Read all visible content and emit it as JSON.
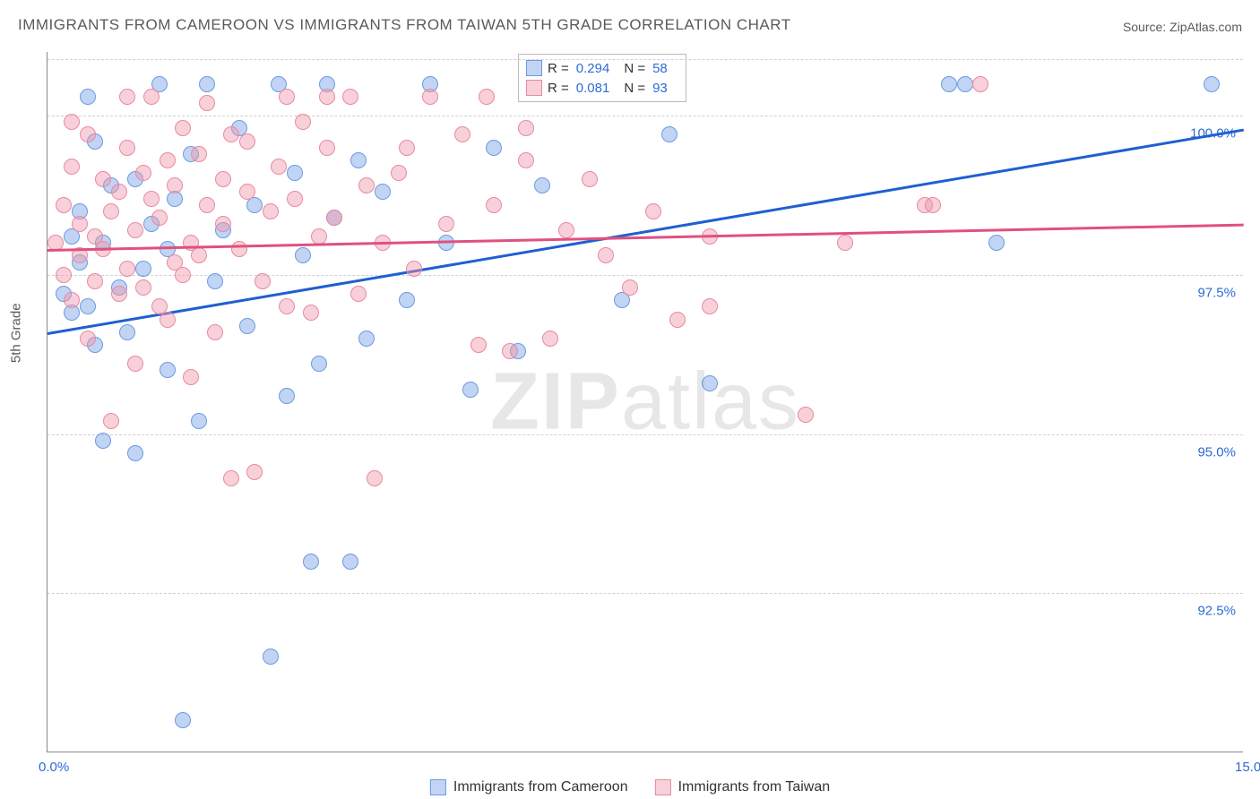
{
  "title": "IMMIGRANTS FROM CAMEROON VS IMMIGRANTS FROM TAIWAN 5TH GRADE CORRELATION CHART",
  "source": "Source: ZipAtlas.com",
  "ylabel": "5th Grade",
  "watermark": "ZIPatlas",
  "chart": {
    "type": "scatter",
    "xlim": [
      0.0,
      15.0
    ],
    "ylim": [
      90.0,
      101.0
    ],
    "xticks": [
      {
        "v": 0.0,
        "label": "0.0%"
      },
      {
        "v": 15.0,
        "label": "15.0%"
      }
    ],
    "yticks": [
      {
        "v": 92.5,
        "label": "92.5%"
      },
      {
        "v": 95.0,
        "label": "95.0%"
      },
      {
        "v": 97.5,
        "label": "97.5%"
      },
      {
        "v": 100.0,
        "label": "100.0%"
      }
    ],
    "grid_color": "#d0d0d0",
    "background_color": "#ffffff",
    "marker_radius": 9,
    "series": [
      {
        "name": "Immigrants from Cameroon",
        "color_fill": "rgba(120,160,230,0.45)",
        "color_stroke": "#6a9be0",
        "trend_color": "#1f5fd0",
        "r": 0.294,
        "n": 58,
        "trend": {
          "x1": 0.0,
          "y1": 96.6,
          "x2": 15.0,
          "y2": 99.8
        },
        "points": [
          [
            0.2,
            97.2
          ],
          [
            0.3,
            98.1
          ],
          [
            0.3,
            96.9
          ],
          [
            0.4,
            97.7
          ],
          [
            0.4,
            98.5
          ],
          [
            0.5,
            97.0
          ],
          [
            0.6,
            99.6
          ],
          [
            0.6,
            96.4
          ],
          [
            0.7,
            94.9
          ],
          [
            0.7,
            98.0
          ],
          [
            0.8,
            98.9
          ],
          [
            0.9,
            97.3
          ],
          [
            1.0,
            96.6
          ],
          [
            1.1,
            94.7
          ],
          [
            1.1,
            99.0
          ],
          [
            1.2,
            97.6
          ],
          [
            1.3,
            98.3
          ],
          [
            1.4,
            100.5
          ],
          [
            1.5,
            97.9
          ],
          [
            1.5,
            96.0
          ],
          [
            1.6,
            98.7
          ],
          [
            1.7,
            90.5
          ],
          [
            1.8,
            99.4
          ],
          [
            1.9,
            95.2
          ],
          [
            2.0,
            100.5
          ],
          [
            2.1,
            97.4
          ],
          [
            2.2,
            98.2
          ],
          [
            2.4,
            99.8
          ],
          [
            2.5,
            96.7
          ],
          [
            2.6,
            98.6
          ],
          [
            2.8,
            91.5
          ],
          [
            2.9,
            100.5
          ],
          [
            3.0,
            95.6
          ],
          [
            3.1,
            99.1
          ],
          [
            3.2,
            97.8
          ],
          [
            3.3,
            93.0
          ],
          [
            3.4,
            96.1
          ],
          [
            3.5,
            100.5
          ],
          [
            3.6,
            98.4
          ],
          [
            3.8,
            93.0
          ],
          [
            3.9,
            99.3
          ],
          [
            4.0,
            96.5
          ],
          [
            4.2,
            98.8
          ],
          [
            4.5,
            97.1
          ],
          [
            4.8,
            100.5
          ],
          [
            5.0,
            98.0
          ],
          [
            5.3,
            95.7
          ],
          [
            5.6,
            99.5
          ],
          [
            5.9,
            96.3
          ],
          [
            6.2,
            98.9
          ],
          [
            7.2,
            97.1
          ],
          [
            7.8,
            99.7
          ],
          [
            8.3,
            95.8
          ],
          [
            11.3,
            100.5
          ],
          [
            11.5,
            100.5
          ],
          [
            11.9,
            98.0
          ],
          [
            14.6,
            100.5
          ],
          [
            0.5,
            100.3
          ]
        ]
      },
      {
        "name": "Immigrants from Taiwan",
        "color_fill": "rgba(240,150,170,0.45)",
        "color_stroke": "#e88aa0",
        "trend_color": "#e05080",
        "r": 0.081,
        "n": 93,
        "trend": {
          "x1": 0.0,
          "y1": 97.9,
          "x2": 15.0,
          "y2": 98.3
        },
        "points": [
          [
            0.1,
            98.0
          ],
          [
            0.2,
            97.5
          ],
          [
            0.2,
            98.6
          ],
          [
            0.3,
            99.2
          ],
          [
            0.3,
            97.1
          ],
          [
            0.4,
            98.3
          ],
          [
            0.4,
            97.8
          ],
          [
            0.5,
            99.7
          ],
          [
            0.5,
            96.5
          ],
          [
            0.6,
            98.1
          ],
          [
            0.6,
            97.4
          ],
          [
            0.7,
            99.0
          ],
          [
            0.7,
            97.9
          ],
          [
            0.8,
            98.5
          ],
          [
            0.8,
            95.2
          ],
          [
            0.9,
            97.2
          ],
          [
            0.9,
            98.8
          ],
          [
            1.0,
            99.5
          ],
          [
            1.0,
            97.6
          ],
          [
            1.1,
            98.2
          ],
          [
            1.1,
            96.1
          ],
          [
            1.2,
            99.1
          ],
          [
            1.2,
            97.3
          ],
          [
            1.3,
            98.7
          ],
          [
            1.3,
            100.3
          ],
          [
            1.4,
            97.0
          ],
          [
            1.4,
            98.4
          ],
          [
            1.5,
            99.3
          ],
          [
            1.5,
            96.8
          ],
          [
            1.6,
            97.7
          ],
          [
            1.6,
            98.9
          ],
          [
            1.7,
            99.8
          ],
          [
            1.7,
            97.5
          ],
          [
            1.8,
            98.0
          ],
          [
            1.8,
            95.9
          ],
          [
            1.9,
            99.4
          ],
          [
            1.9,
            97.8
          ],
          [
            2.0,
            98.6
          ],
          [
            2.0,
            100.2
          ],
          [
            2.1,
            96.6
          ],
          [
            2.2,
            98.3
          ],
          [
            2.2,
            99.0
          ],
          [
            2.3,
            94.3
          ],
          [
            2.4,
            97.9
          ],
          [
            2.5,
            98.8
          ],
          [
            2.5,
            99.6
          ],
          [
            2.6,
            94.4
          ],
          [
            2.7,
            97.4
          ],
          [
            2.8,
            98.5
          ],
          [
            2.9,
            99.2
          ],
          [
            3.0,
            100.3
          ],
          [
            3.0,
            97.0
          ],
          [
            3.1,
            98.7
          ],
          [
            3.2,
            99.9
          ],
          [
            3.3,
            96.9
          ],
          [
            3.4,
            98.1
          ],
          [
            3.5,
            99.5
          ],
          [
            3.6,
            98.4
          ],
          [
            3.8,
            100.3
          ],
          [
            3.9,
            97.2
          ],
          [
            4.0,
            98.9
          ],
          [
            4.1,
            94.3
          ],
          [
            4.2,
            98.0
          ],
          [
            4.4,
            99.1
          ],
          [
            4.6,
            97.6
          ],
          [
            4.8,
            100.3
          ],
          [
            5.0,
            98.3
          ],
          [
            5.2,
            99.7
          ],
          [
            5.4,
            96.4
          ],
          [
            5.6,
            98.6
          ],
          [
            5.8,
            96.3
          ],
          [
            6.0,
            99.8
          ],
          [
            6.0,
            99.3
          ],
          [
            6.3,
            96.5
          ],
          [
            6.5,
            98.2
          ],
          [
            6.8,
            99.0
          ],
          [
            7.0,
            97.8
          ],
          [
            7.3,
            97.3
          ],
          [
            7.6,
            98.5
          ],
          [
            7.9,
            96.8
          ],
          [
            8.3,
            98.1
          ],
          [
            8.3,
            97.0
          ],
          [
            9.5,
            95.3
          ],
          [
            10.0,
            98.0
          ],
          [
            11.0,
            98.6
          ],
          [
            11.1,
            98.6
          ],
          [
            11.7,
            100.5
          ],
          [
            0.3,
            99.9
          ],
          [
            1.0,
            100.3
          ],
          [
            2.3,
            99.7
          ],
          [
            3.5,
            100.3
          ],
          [
            4.5,
            99.5
          ],
          [
            5.5,
            100.3
          ]
        ]
      }
    ]
  },
  "legend": {
    "r_label": "R =",
    "n_label": "N ="
  },
  "bottom_legend": [
    {
      "label": "Immigrants from Cameroon",
      "fill": "rgba(120,160,230,0.45)",
      "stroke": "#6a9be0"
    },
    {
      "label": "Immigrants from Taiwan",
      "fill": "rgba(240,150,170,0.45)",
      "stroke": "#e88aa0"
    }
  ]
}
